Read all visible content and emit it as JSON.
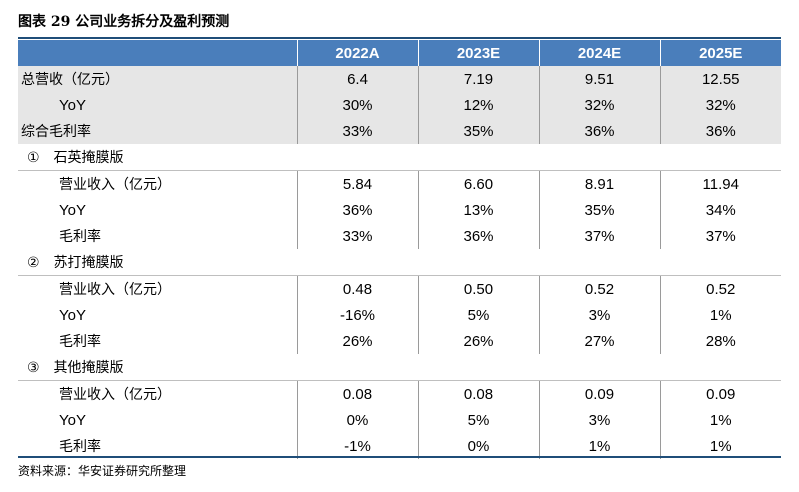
{
  "title": "图表 29 公司业务拆分及盈利预测",
  "source": "资料来源：华安证券研究所整理",
  "table": {
    "columns": [
      "2022A",
      "2023E",
      "2024E",
      "2025E"
    ],
    "rows": [
      {
        "label": "总营收（亿元）",
        "values": [
          "6.4",
          "7.19",
          "9.51",
          "12.55"
        ]
      },
      {
        "label": "YoY",
        "values": [
          "30%",
          "12%",
          "32%",
          "32%"
        ]
      },
      {
        "label": "综合毛利率",
        "values": [
          "33%",
          "35%",
          "36%",
          "36%"
        ]
      },
      {
        "label": "①　石英掩膜版",
        "values": []
      },
      {
        "label": "营业收入（亿元）",
        "values": [
          "5.84",
          "6.60",
          "8.91",
          "11.94"
        ]
      },
      {
        "label": "YoY",
        "values": [
          "36%",
          "13%",
          "35%",
          "34%"
        ]
      },
      {
        "label": "毛利率",
        "values": [
          "33%",
          "36%",
          "37%",
          "37%"
        ]
      },
      {
        "label": "②　苏打掩膜版",
        "values": []
      },
      {
        "label": "营业收入（亿元）",
        "values": [
          "0.48",
          "0.50",
          "0.52",
          "0.52"
        ]
      },
      {
        "label": "YoY",
        "values": [
          "-16%",
          "5%",
          "3%",
          "1%"
        ]
      },
      {
        "label": "毛利率",
        "values": [
          "26%",
          "26%",
          "27%",
          "28%"
        ]
      },
      {
        "label": "③　其他掩膜版",
        "values": []
      },
      {
        "label": "营业收入（亿元）",
        "values": [
          "0.08",
          "0.08",
          "0.09",
          "0.09"
        ]
      },
      {
        "label": "YoY",
        "values": [
          "0%",
          "5%",
          "3%",
          "1%"
        ]
      },
      {
        "label": "毛利率",
        "values": [
          "-1%",
          "0%",
          "1%",
          "1%"
        ]
      }
    ]
  },
  "colors": {
    "header_bg": "#4a7ebb",
    "shade_bg": "#e6e6e6",
    "rule": "#1f4e79"
  }
}
